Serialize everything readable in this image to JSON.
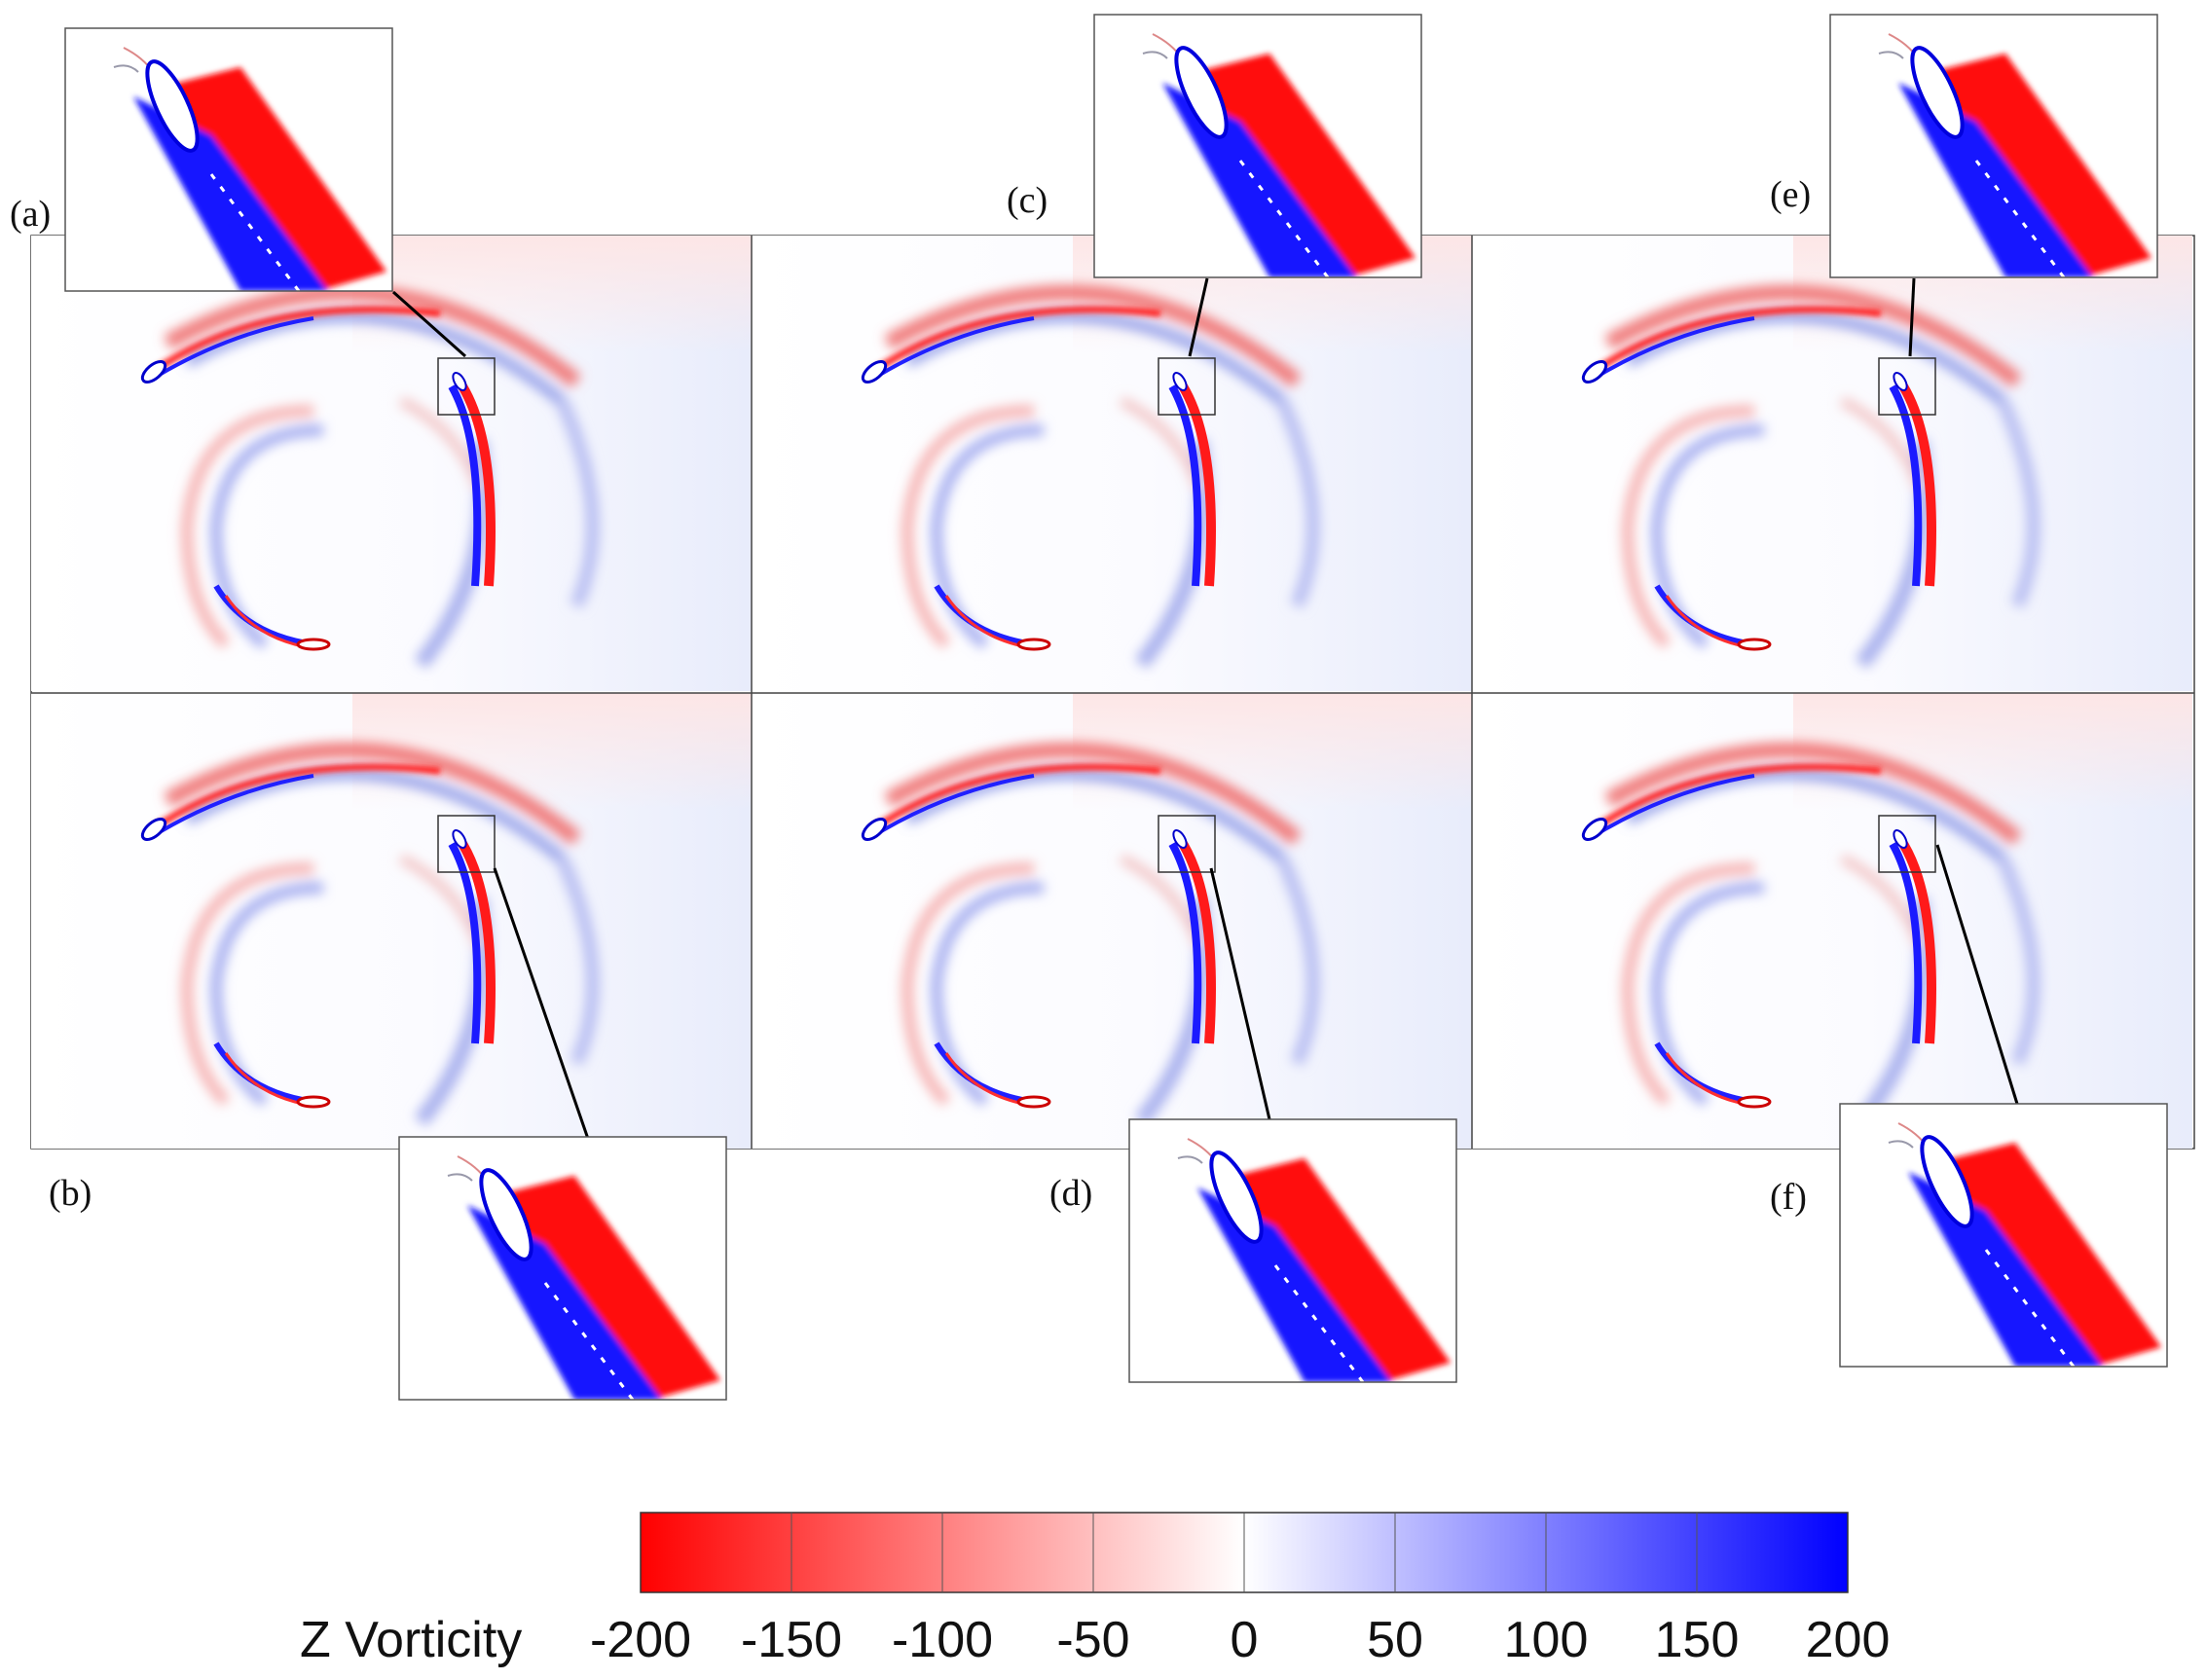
{
  "figure": {
    "panel_labels": [
      "(a)",
      "(b)",
      "(c)",
      "(d)",
      "(e)",
      "(f)"
    ],
    "colorbar": {
      "title": "Z Vorticity",
      "ticks": [
        "-200",
        "-150",
        "-100",
        "-50",
        "0",
        "50",
        "100",
        "150",
        "200"
      ],
      "min": -200,
      "max": 200,
      "colors": {
        "negative": "#ff0000",
        "zero": "#ffffff",
        "positive": "#0000ff"
      }
    }
  }
}
